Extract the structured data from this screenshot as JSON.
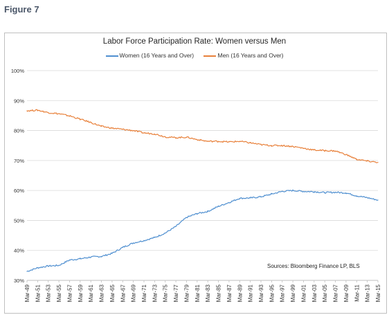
{
  "figure_label": "Figure 7",
  "source_note": "Sources: Bloomberg Finance LP, BLS",
  "chart_data": {
    "type": "line",
    "title": "Labor Force Participation Rate: Women versus Men",
    "xlabel": "",
    "ylabel": "",
    "ylim": [
      30,
      100
    ],
    "y_ticks": [
      30,
      40,
      50,
      60,
      70,
      80,
      90,
      100
    ],
    "y_tick_labels": [
      "30%",
      "40%",
      "50%",
      "60%",
      "70%",
      "80%",
      "90%",
      "100%"
    ],
    "x_tick_labels": [
      "Mar-49",
      "Mar-51",
      "Mar-53",
      "Mar-55",
      "Mar-57",
      "Mar-59",
      "Mar-61",
      "Mar-63",
      "Mar-65",
      "Mar-67",
      "Mar-69",
      "Mar-71",
      "Mar-73",
      "Mar-75",
      "Mar-77",
      "Mar-79",
      "Mar-81",
      "Mar-83",
      "Mar-85",
      "Mar-87",
      "Mar-89",
      "Mar-91",
      "Mar-93",
      "Mar-95",
      "Mar-97",
      "Mar-99",
      "Mar-01",
      "Mar-03",
      "Mar-05",
      "Mar-07",
      "Mar-09",
      "Mar-11",
      "Mar-13",
      "Mar-15"
    ],
    "x": [
      "Mar-49",
      "Mar-51",
      "Mar-53",
      "Mar-55",
      "Mar-57",
      "Mar-59",
      "Mar-61",
      "Mar-63",
      "Mar-65",
      "Mar-67",
      "Mar-69",
      "Mar-71",
      "Mar-73",
      "Mar-75",
      "Mar-77",
      "Mar-79",
      "Mar-81",
      "Mar-83",
      "Mar-85",
      "Mar-87",
      "Mar-89",
      "Mar-91",
      "Mar-93",
      "Mar-95",
      "Mar-97",
      "Mar-99",
      "Mar-01",
      "Mar-03",
      "Mar-05",
      "Mar-07",
      "Mar-09",
      "Mar-11",
      "Mar-13",
      "Mar-15"
    ],
    "grid": true,
    "legend_position": "top",
    "series": [
      {
        "name": "Women (16 Years and Over)",
        "color": "#4f8fd0",
        "values": [
          33.0,
          34.2,
          34.8,
          35.0,
          36.8,
          37.2,
          37.8,
          38.0,
          39.0,
          41.0,
          42.5,
          43.3,
          44.3,
          45.8,
          48.0,
          51.0,
          52.3,
          53.0,
          54.7,
          56.0,
          57.4,
          57.5,
          57.9,
          58.8,
          59.7,
          60.0,
          59.7,
          59.6,
          59.3,
          59.4,
          59.2,
          58.2,
          57.6,
          56.8
        ]
      },
      {
        "name": "Men (16 Years and Over)",
        "color": "#e8803a",
        "values": [
          86.6,
          86.8,
          86.0,
          85.6,
          84.9,
          83.8,
          82.7,
          81.4,
          80.8,
          80.4,
          80.0,
          79.2,
          78.9,
          77.9,
          77.6,
          77.8,
          77.0,
          76.4,
          76.4,
          76.2,
          76.4,
          75.9,
          75.3,
          75.0,
          75.0,
          74.7,
          74.1,
          73.5,
          73.3,
          73.2,
          72.0,
          70.4,
          69.8,
          69.4
        ]
      }
    ]
  }
}
